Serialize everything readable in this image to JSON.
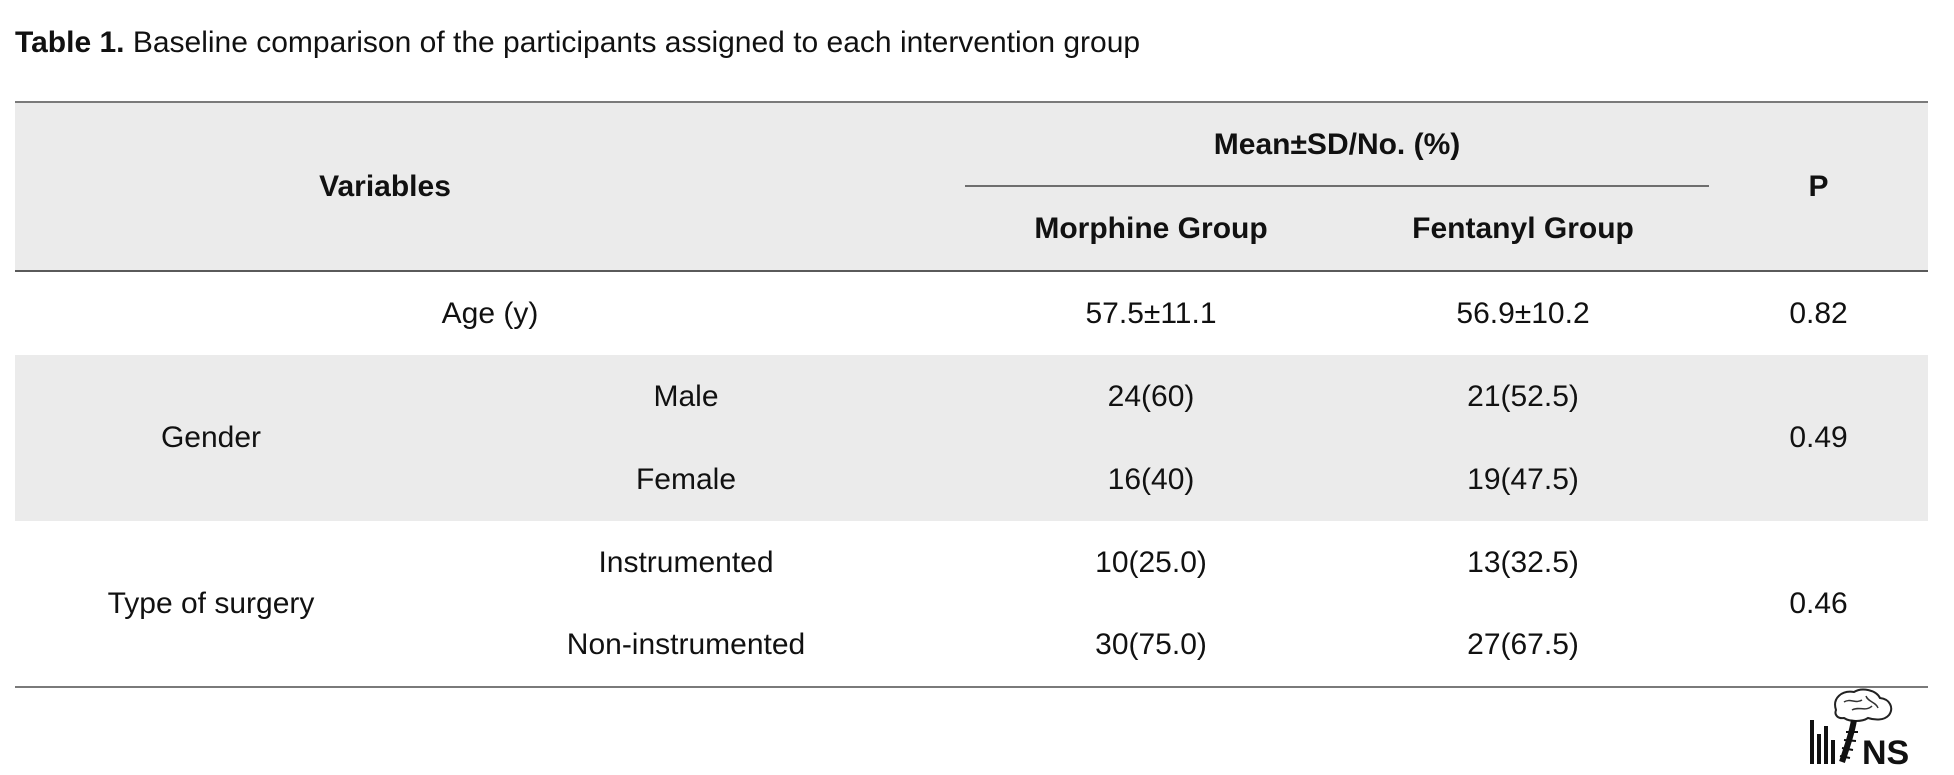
{
  "caption": {
    "label": "Table 1.",
    "text": " Baseline comparison of the participants assigned to each intervention group"
  },
  "header": {
    "variables": "Variables",
    "group_span": "Mean±SD/No. (%)",
    "morphine": "Morphine Group",
    "fentanyl": "Fentanyl Group",
    "p": "P"
  },
  "rows": {
    "age": {
      "label": "Age (y)",
      "morphine": "57.5±11.1",
      "fentanyl": "56.9±10.2",
      "p": "0.82"
    },
    "gender": {
      "label": "Gender",
      "p": "0.49",
      "male": {
        "label": "Male",
        "morphine": "24(60)",
        "fentanyl": "21(52.5)"
      },
      "female": {
        "label": "Female",
        "morphine": "16(40)",
        "fentanyl": "19(47.5)"
      }
    },
    "surgery": {
      "label": "Type of surgery",
      "p": "0.46",
      "instrumented": {
        "label": "Instrumented",
        "morphine": "10(25.0)",
        "fentanyl": "13(32.5)"
      },
      "non_instrumented": {
        "label": "Non-instrumented",
        "morphine": "30(75.0)",
        "fentanyl": "27(67.5)"
      }
    }
  },
  "logo": {
    "text": "NS",
    "icon": "brain-spine-logo-icon"
  }
}
